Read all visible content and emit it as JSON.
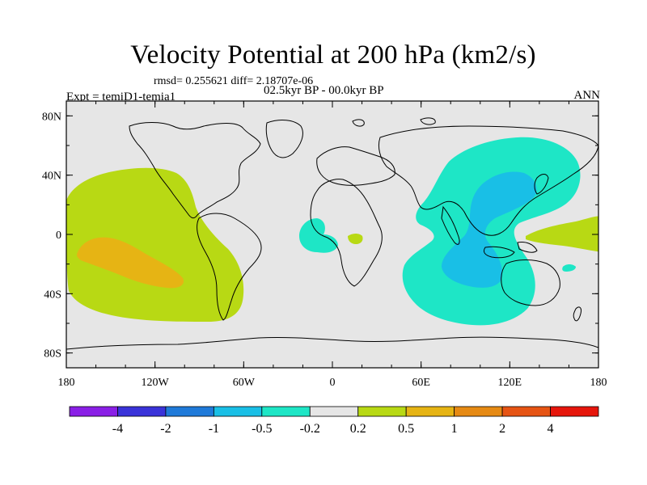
{
  "header": {
    "title": "Velocity Potential at 200 hPa (km2/s)",
    "stats": "rmsd= 0.255621 diff= 2.18707e-06",
    "experiment": "Expt = temiD1-temia1",
    "period": "02.5kyr BP - 00.0kyr BP",
    "season": "ANN"
  },
  "map": {
    "background_color": "#e6e6e6",
    "x_ticks": [
      "180",
      "120W",
      "60W",
      "0",
      "60E",
      "120E",
      "180"
    ],
    "y_ticks": [
      "80N",
      "40N",
      "0",
      "40S",
      "80S"
    ],
    "x_tick_values": [
      -180,
      -120,
      -60,
      0,
      60,
      120,
      180
    ],
    "y_tick_values": [
      80,
      40,
      0,
      -40,
      -80
    ]
  },
  "colorbar": {
    "colors": [
      "#8a1fe6",
      "#3a33d9",
      "#1f7ad9",
      "#19bfe6",
      "#1ee6c6",
      "#e6e6e6",
      "#b8d914",
      "#e6b414",
      "#e68a14",
      "#e65414",
      "#e6160c"
    ],
    "labels": [
      "-4",
      "-2",
      "-1",
      "-0.5",
      "-0.2",
      "0.2",
      "0.5",
      "1",
      "2",
      "4"
    ]
  },
  "fields": {
    "colors": {
      "pos_low": "#b8d914",
      "pos_mid": "#e6b414",
      "neg_low": "#1ee6c6",
      "neg_mid": "#19bfe6"
    }
  }
}
